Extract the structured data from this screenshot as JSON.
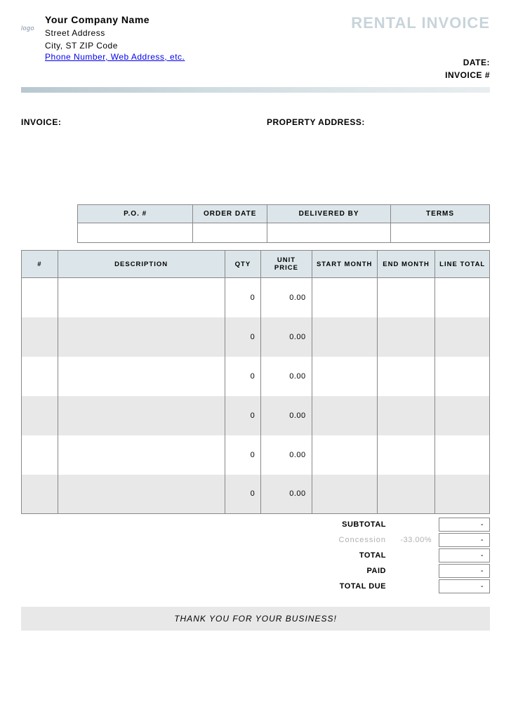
{
  "header": {
    "logo_text": "logo",
    "company_name": "Your Company Name",
    "street": "Street Address",
    "city_line": "City, ST  ZIP Code",
    "contact_link": "Phone Number, Web Address, etc.",
    "title": "RENTAL INVOICE",
    "date_label": "DATE:",
    "invoice_num_label": "INVOICE #"
  },
  "info": {
    "invoice_label": "INVOICE:",
    "property_label": "PROPERTY ADDRESS:"
  },
  "order_table": {
    "headers": {
      "po": "P.O. #",
      "order_date": "ORDER DATE",
      "delivered_by": "DELIVERED BY",
      "terms": "TERMS"
    },
    "widths": {
      "po": "28%",
      "order_date": "18%",
      "delivered_by": "30%",
      "terms": "24%"
    }
  },
  "items_table": {
    "headers": {
      "num": "#",
      "desc": "DESCRIPTION",
      "qty": "QTY",
      "unit": "UNIT PRICE",
      "start": "START MONTH",
      "end": "END MONTH",
      "total": "LINE TOTAL"
    },
    "rows": [
      {
        "qty": "0",
        "unit": "0.00",
        "alt": false
      },
      {
        "qty": "0",
        "unit": "0.00",
        "alt": true
      },
      {
        "qty": "0",
        "unit": "0.00",
        "alt": false
      },
      {
        "qty": "0",
        "unit": "0.00",
        "alt": true
      },
      {
        "qty": "0",
        "unit": "0.00",
        "alt": false
      },
      {
        "qty": "0",
        "unit": "0.00",
        "alt": true
      }
    ]
  },
  "totals": {
    "subtotal_label": "SUBTOTAL",
    "concession_label": "Concession",
    "concession_pct": "-33.00%",
    "total_label": "TOTAL",
    "paid_label": "PAID",
    "due_label": "TOTAL DUE",
    "dash": "-"
  },
  "footer": {
    "thank_you": "THANK YOU FOR YOUR BUSINESS!"
  },
  "colors": {
    "header_accent": "#c8d4da",
    "table_header_bg": "#dce6ea",
    "alt_row_bg": "#e8e8e8",
    "border": "#888888",
    "link": "#0000ee",
    "muted": "#b0b0b0"
  }
}
